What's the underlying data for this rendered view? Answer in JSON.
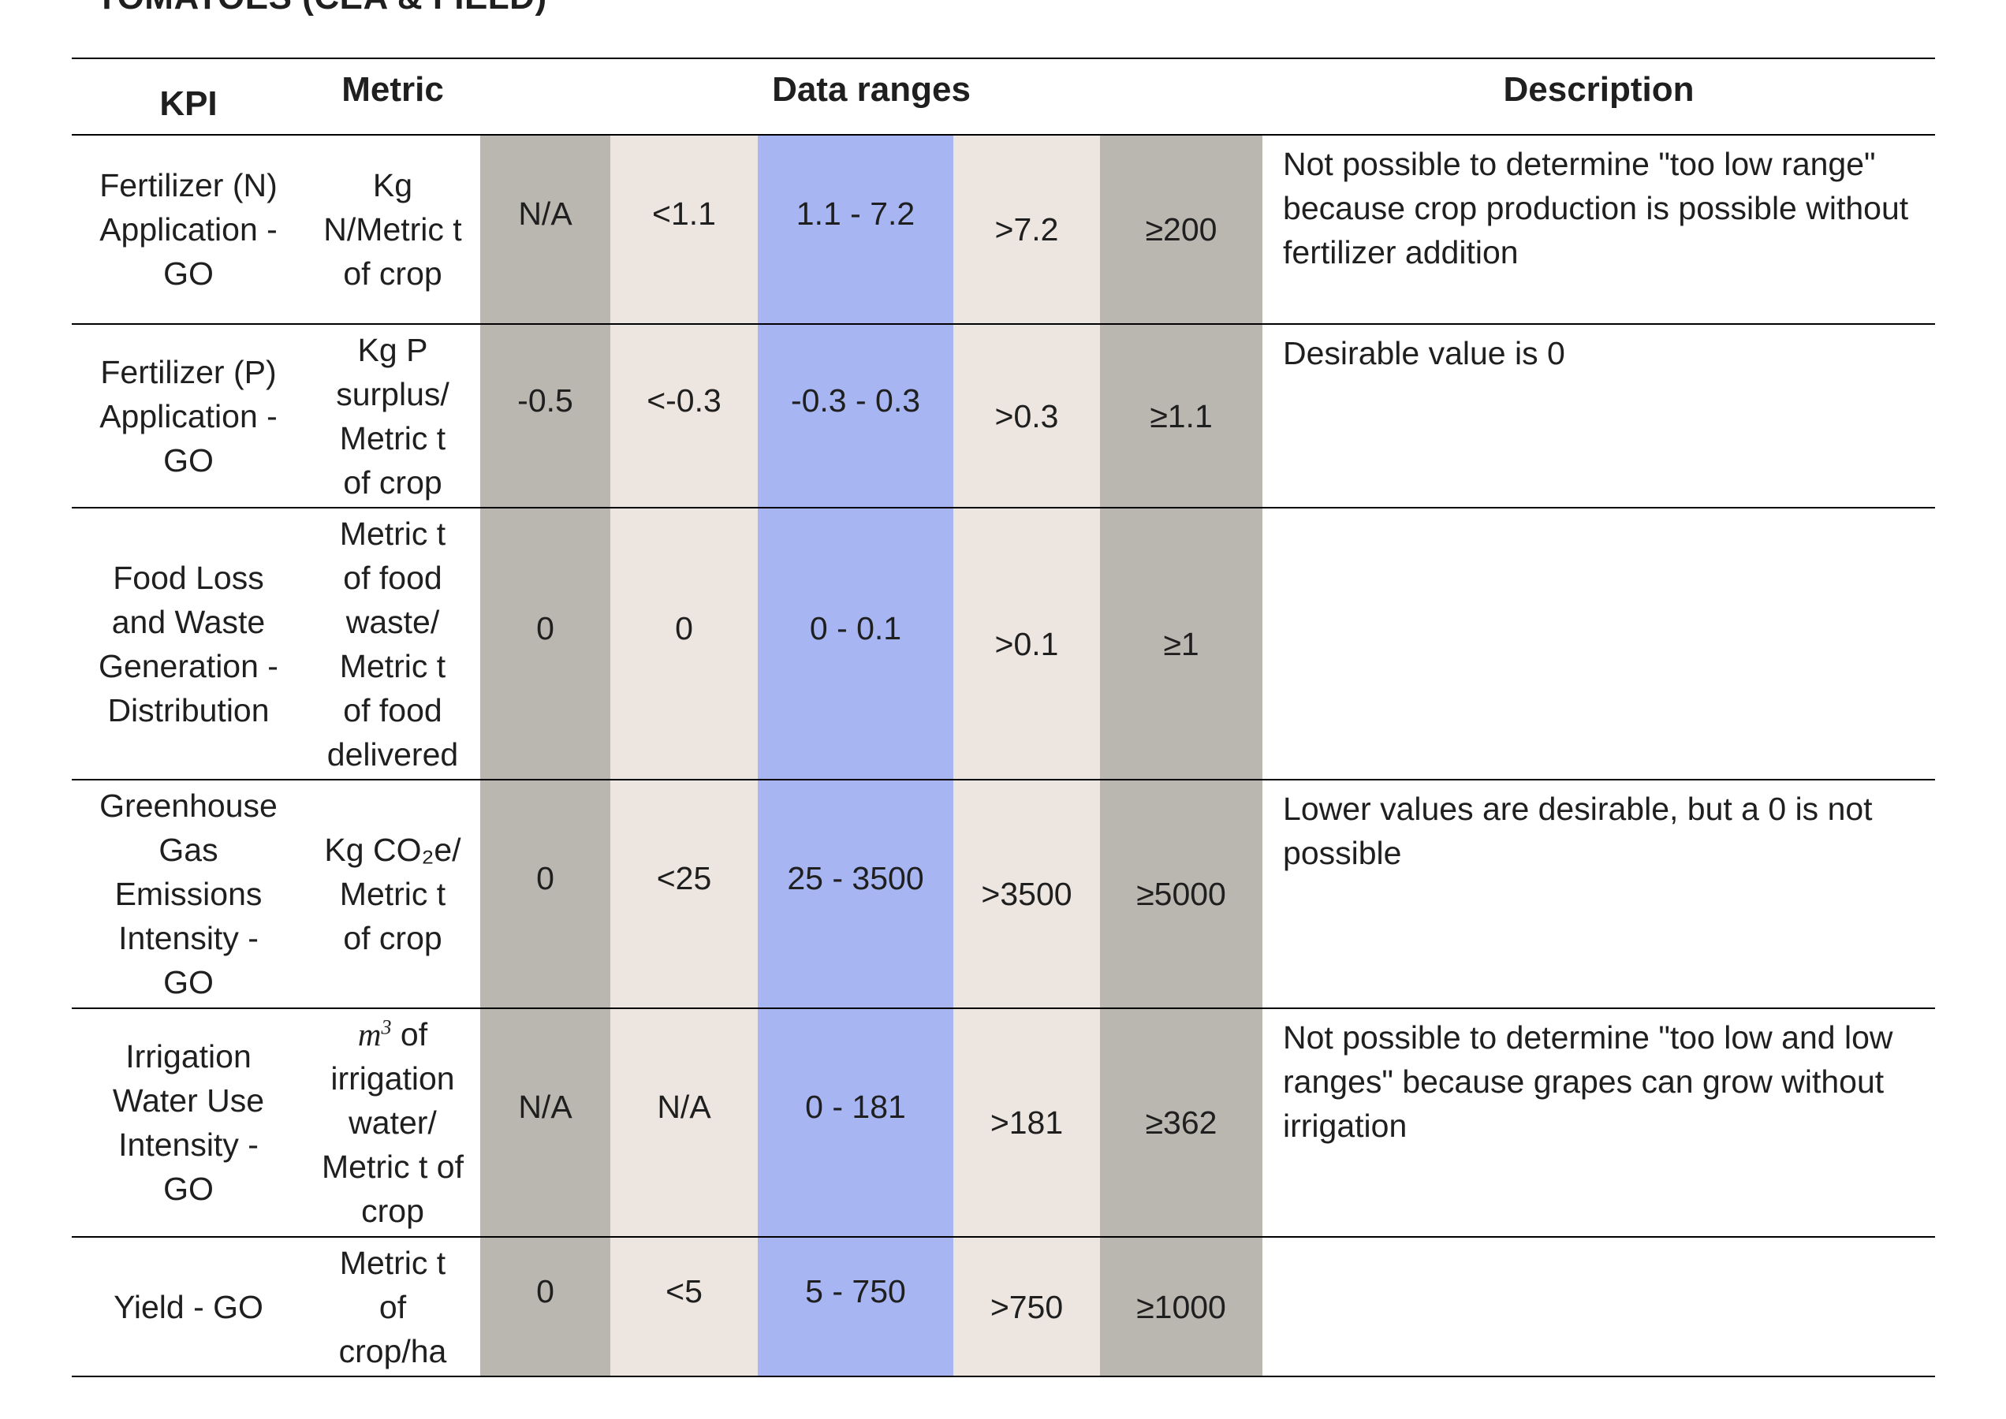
{
  "title": "TOMATOES (CEA & FIELD)",
  "headers": {
    "kpi": "KPI",
    "metric": "Metric",
    "data_ranges": "Data ranges",
    "description": "Description"
  },
  "colors": {
    "outer_range": "#bab7b1",
    "inner_range": "#ede6e0",
    "target_range": "#a7b6f2"
  },
  "rows": [
    {
      "kpi": "Fertilizer (N) Application - GO",
      "metric": "Kg N/Metric t of crop",
      "ranges": [
        "N/A",
        "<1.1",
        "1.1 - 7.2",
        ">7.2",
        "≥200"
      ],
      "description": "Not possible to determine \"too low range\" because crop production is possible without fertilizer addition"
    },
    {
      "kpi": "Fertilizer (P) Application - GO",
      "metric": "Kg P surplus/ Metric t of crop",
      "ranges": [
        "-0.5",
        "<-0.3",
        "-0.3 - 0.3",
        ">0.3",
        "≥1.1"
      ],
      "description": "Desirable value is 0"
    },
    {
      "kpi": "Food Loss and Waste Generation - Distribution",
      "metric": "Metric t of food waste/ Metric t of food delivered",
      "ranges": [
        "0",
        "0",
        "0 - 0.1",
        ">0.1",
        "≥1"
      ],
      "description": ""
    },
    {
      "kpi": "Greenhouse Gas Emissions Intensity - GO",
      "metric": "Kg CO₂e/ Metric t of crop",
      "ranges": [
        "0",
        "<25",
        "25 - 3500",
        ">3500",
        "≥5000"
      ],
      "description": "Lower values are desirable, but a 0 is not possible"
    },
    {
      "kpi": "Irrigation Water Use Intensity - GO",
      "metric_prefix": "m",
      "metric_exp": "3",
      "metric": "of irrigation water/ Metric t of crop",
      "ranges": [
        "N/A",
        "N/A",
        "0 - 181",
        ">181",
        "≥362"
      ],
      "description": "Not possible to determine \"too low and low ranges\" because grapes can grow without irrigation"
    },
    {
      "kpi": "Yield - GO",
      "metric": "Metric t of crop/ha",
      "ranges": [
        "0",
        "<5",
        "5 - 750",
        ">750",
        "≥1000"
      ],
      "description": ""
    }
  ]
}
